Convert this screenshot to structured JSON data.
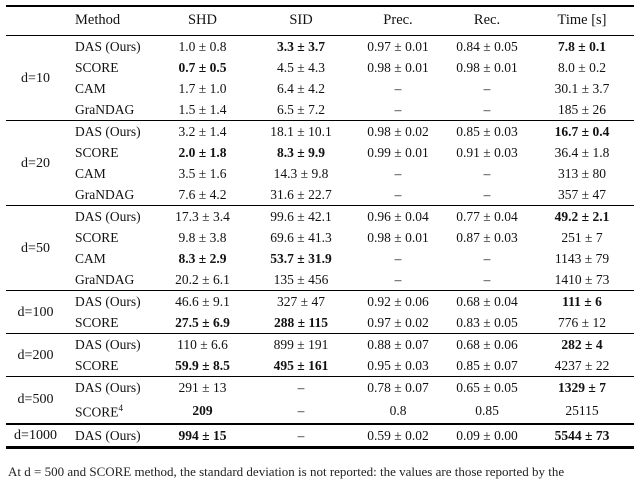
{
  "table": {
    "columns": [
      "Method",
      "SHD",
      "SID",
      "Prec.",
      "Rec.",
      "Time [s]"
    ],
    "dash": "–",
    "groups": [
      {
        "dim": "d=10",
        "thick_top": false,
        "rows": [
          {
            "method": "DAS (Ours)",
            "sup": "",
            "values": [
              "1.0 ± 0.8",
              "3.3 ± 3.7",
              "0.97 ± 0.01",
              "0.84 ± 0.05",
              "7.8 ± 0.1"
            ],
            "bold": [
              false,
              true,
              false,
              false,
              true
            ]
          },
          {
            "method": "SCORE",
            "sup": "",
            "values": [
              "0.7 ± 0.5",
              "4.5 ± 4.3",
              "0.98 ± 0.01",
              "0.98 ± 0.01",
              "8.0 ± 0.2"
            ],
            "bold": [
              true,
              false,
              false,
              false,
              false
            ]
          },
          {
            "method": "CAM",
            "sup": "",
            "values": [
              "1.7 ± 1.0",
              "6.4 ± 4.2",
              "–",
              "–",
              "30.1 ± 3.7"
            ],
            "bold": [
              false,
              false,
              false,
              false,
              false
            ]
          },
          {
            "method": "GraNDAG",
            "sup": "",
            "values": [
              "1.5 ± 1.4",
              "6.5 ± 7.2",
              "–",
              "–",
              "185 ± 26"
            ],
            "bold": [
              false,
              false,
              false,
              false,
              false
            ]
          }
        ]
      },
      {
        "dim": "d=20",
        "thick_top": false,
        "rows": [
          {
            "method": "DAS (Ours)",
            "sup": "",
            "values": [
              "3.2 ± 1.4",
              "18.1 ± 10.1",
              "0.98 ± 0.02",
              "0.85 ± 0.03",
              "16.7 ± 0.4"
            ],
            "bold": [
              false,
              false,
              false,
              false,
              true
            ]
          },
          {
            "method": "SCORE",
            "sup": "",
            "values": [
              "2.0 ± 1.8",
              "8.3 ± 9.9",
              "0.99 ± 0.01",
              "0.91 ± 0.03",
              "36.4 ± 1.8"
            ],
            "bold": [
              true,
              true,
              false,
              false,
              false
            ]
          },
          {
            "method": "CAM",
            "sup": "",
            "values": [
              "3.5 ± 1.6",
              "14.3 ± 9.8",
              "–",
              "–",
              "313 ± 80"
            ],
            "bold": [
              false,
              false,
              false,
              false,
              false
            ]
          },
          {
            "method": "GraNDAG",
            "sup": "",
            "values": [
              "7.6 ± 4.2",
              "31.6 ± 22.7",
              "–",
              "–",
              "357 ± 47"
            ],
            "bold": [
              false,
              false,
              false,
              false,
              false
            ]
          }
        ]
      },
      {
        "dim": "d=50",
        "thick_top": false,
        "rows": [
          {
            "method": "DAS (Ours)",
            "sup": "",
            "values": [
              "17.3 ± 3.4",
              "99.6 ± 42.1",
              "0.96 ± 0.04",
              "0.77 ± 0.04",
              "49.2 ± 2.1"
            ],
            "bold": [
              false,
              false,
              false,
              false,
              true
            ]
          },
          {
            "method": "SCORE",
            "sup": "",
            "values": [
              "9.8 ± 3.8",
              "69.6 ± 41.3",
              "0.98 ± 0.01",
              "0.87 ± 0.03",
              "251 ± 7"
            ],
            "bold": [
              false,
              false,
              false,
              false,
              false
            ]
          },
          {
            "method": "CAM",
            "sup": "",
            "values": [
              "8.3 ± 2.9",
              "53.7 ± 31.9",
              "–",
              "–",
              "1143 ± 79"
            ],
            "bold": [
              true,
              true,
              false,
              false,
              false
            ]
          },
          {
            "method": "GraNDAG",
            "sup": "",
            "values": [
              "20.2 ± 6.1",
              "135 ± 456",
              "–",
              "–",
              "1410 ± 73"
            ],
            "bold": [
              false,
              false,
              false,
              false,
              false
            ]
          }
        ]
      },
      {
        "dim": "d=100",
        "thick_top": false,
        "rows": [
          {
            "method": "DAS (Ours)",
            "sup": "",
            "values": [
              "46.6 ± 9.1",
              "327 ± 47",
              "0.92 ± 0.06",
              "0.68 ± 0.04",
              "111 ± 6"
            ],
            "bold": [
              false,
              false,
              false,
              false,
              true
            ]
          },
          {
            "method": "SCORE",
            "sup": "",
            "values": [
              "27.5 ± 6.9",
              "288 ± 115",
              "0.97 ± 0.02",
              "0.83 ± 0.05",
              "776 ± 12"
            ],
            "bold": [
              true,
              true,
              false,
              false,
              false
            ]
          }
        ]
      },
      {
        "dim": "d=200",
        "thick_top": false,
        "rows": [
          {
            "method": "DAS (Ours)",
            "sup": "",
            "values": [
              "110 ± 6.6",
              "899 ± 191",
              "0.88 ± 0.07",
              "0.68 ± 0.06",
              "282 ± 4"
            ],
            "bold": [
              false,
              false,
              false,
              false,
              true
            ]
          },
          {
            "method": "SCORE",
            "sup": "",
            "values": [
              "59.9 ± 8.5",
              "495 ± 161",
              "0.95 ± 0.03",
              "0.85 ± 0.07",
              "4237 ± 22"
            ],
            "bold": [
              true,
              true,
              false,
              false,
              false
            ]
          }
        ]
      },
      {
        "dim": "d=500",
        "thick_top": false,
        "rows": [
          {
            "method": "DAS (Ours)",
            "sup": "",
            "values": [
              "291 ± 13",
              "–",
              "0.78 ± 0.07",
              "0.65 ± 0.05",
              "1329 ± 7"
            ],
            "bold": [
              false,
              false,
              false,
              false,
              true
            ]
          },
          {
            "method": "SCORE",
            "sup": "4",
            "values": [
              "209",
              "–",
              "0.8",
              "0.85",
              "25115"
            ],
            "bold": [
              true,
              false,
              false,
              false,
              false
            ]
          }
        ]
      },
      {
        "dim": "d=1000",
        "thick_top": true,
        "rows": [
          {
            "method": "DAS (Ours)",
            "sup": "",
            "values": [
              "994 ± 15",
              "–",
              "0.59 ± 0.02",
              "0.09 ± 0.00",
              "5544 ± 73"
            ],
            "bold": [
              true,
              false,
              false,
              false,
              true
            ]
          }
        ]
      }
    ]
  },
  "caption_fragment": "At d = 500 and SCORE method, the standard deviation is not reported: the values are those reported by the"
}
